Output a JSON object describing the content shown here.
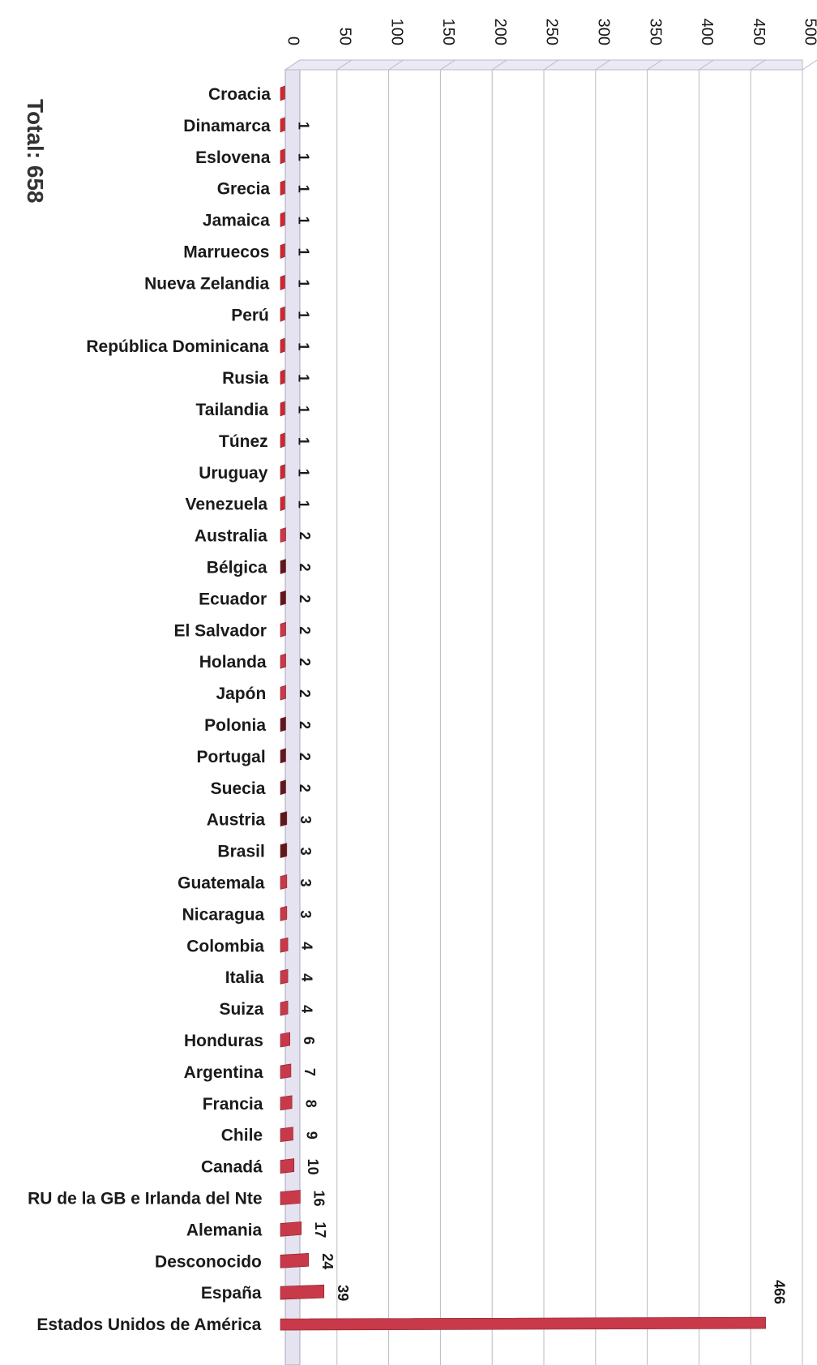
{
  "total_label": "Total: 658",
  "colors": {
    "bar_main": "#c8394a",
    "bar_dark": "#5a1a1e",
    "bar_red": "#d4262e",
    "grid": "#b9b9c9",
    "floor": "#e6e3f0"
  },
  "chart_data": {
    "type": "bar",
    "orientation": "horizontal",
    "title": "",
    "xlabel": "",
    "ylabel": "",
    "xlim": [
      0,
      500
    ],
    "xticks": [
      0,
      50,
      100,
      150,
      200,
      250,
      300,
      350,
      400,
      450,
      500
    ],
    "grid": true,
    "categories": [
      "Croacia",
      "Dinamarca",
      "Eslovena",
      "Grecia",
      "Jamaica",
      "Marruecos",
      "Nueva Zelandia",
      "Perú",
      "República Dominicana",
      "Rusia",
      "Tailandia",
      "Túnez",
      "Uruguay",
      "Venezuela",
      "Australia",
      "Bélgica",
      "Ecuador",
      "El Salvador",
      "Holanda",
      "Japón",
      "Polonia",
      "Portugal",
      "Suecia",
      "Austria",
      "Brasil",
      "Guatemala",
      "Nicaragua",
      "Colombia",
      "Italia",
      "Suiza",
      "Honduras",
      "Argentina",
      "Francia",
      "Chile",
      "Canadá",
      "RU de la GB e Irlanda del Nte",
      "Alemania",
      "Desconocido",
      "España",
      "Estados Unidos de América"
    ],
    "values": [
      1,
      1,
      1,
      1,
      1,
      1,
      1,
      1,
      1,
      1,
      1,
      1,
      1,
      1,
      2,
      2,
      2,
      2,
      2,
      2,
      2,
      2,
      2,
      3,
      3,
      3,
      3,
      4,
      4,
      4,
      6,
      7,
      8,
      9,
      10,
      16,
      17,
      24,
      39,
      466
    ],
    "data_labels": [
      "",
      "1",
      "1",
      "1",
      "1",
      "1",
      "1",
      "1",
      "1",
      "1",
      "1",
      "1",
      "1",
      "1",
      "2",
      "2",
      "2",
      "2",
      "2",
      "2",
      "2",
      "2",
      "2",
      "3",
      "3",
      "3",
      "3",
      "4",
      "4",
      "4",
      "6",
      "7",
      "8",
      "9",
      "10",
      "16",
      "17",
      "24",
      "39",
      "466"
    ]
  }
}
